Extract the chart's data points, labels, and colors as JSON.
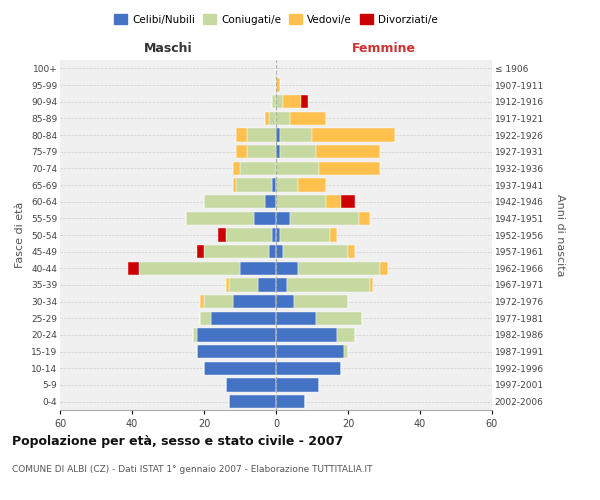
{
  "age_groups": [
    "0-4",
    "5-9",
    "10-14",
    "15-19",
    "20-24",
    "25-29",
    "30-34",
    "35-39",
    "40-44",
    "45-49",
    "50-54",
    "55-59",
    "60-64",
    "65-69",
    "70-74",
    "75-79",
    "80-84",
    "85-89",
    "90-94",
    "95-99",
    "100+"
  ],
  "birth_years": [
    "2002-2006",
    "1997-2001",
    "1992-1996",
    "1987-1991",
    "1982-1986",
    "1977-1981",
    "1972-1976",
    "1967-1971",
    "1962-1966",
    "1957-1961",
    "1952-1956",
    "1947-1951",
    "1942-1946",
    "1937-1941",
    "1932-1936",
    "1927-1931",
    "1922-1926",
    "1917-1921",
    "1912-1916",
    "1907-1911",
    "≤ 1906"
  ],
  "male": {
    "celibi": [
      13,
      14,
      20,
      22,
      22,
      18,
      12,
      5,
      10,
      2,
      1,
      6,
      3,
      1,
      0,
      0,
      0,
      0,
      0,
      0,
      0
    ],
    "coniugati": [
      0,
      0,
      0,
      0,
      1,
      3,
      8,
      8,
      28,
      18,
      13,
      19,
      17,
      10,
      10,
      8,
      8,
      2,
      1,
      0,
      0
    ],
    "vedovi": [
      0,
      0,
      0,
      0,
      0,
      0,
      1,
      1,
      0,
      0,
      0,
      0,
      0,
      1,
      2,
      3,
      3,
      1,
      0,
      0,
      0
    ],
    "divorziati": [
      0,
      0,
      0,
      0,
      0,
      0,
      0,
      0,
      3,
      2,
      2,
      0,
      0,
      0,
      0,
      0,
      0,
      0,
      0,
      0,
      0
    ]
  },
  "female": {
    "nubili": [
      8,
      12,
      18,
      19,
      17,
      11,
      5,
      3,
      6,
      2,
      1,
      4,
      0,
      0,
      0,
      1,
      1,
      0,
      0,
      0,
      0
    ],
    "coniugate": [
      0,
      0,
      0,
      1,
      5,
      13,
      15,
      23,
      23,
      18,
      14,
      19,
      14,
      6,
      12,
      10,
      9,
      4,
      2,
      0,
      0
    ],
    "vedove": [
      0,
      0,
      0,
      0,
      0,
      0,
      0,
      1,
      2,
      2,
      2,
      3,
      4,
      8,
      17,
      18,
      23,
      10,
      5,
      1,
      0
    ],
    "divorziate": [
      0,
      0,
      0,
      0,
      0,
      0,
      0,
      0,
      0,
      0,
      0,
      0,
      4,
      0,
      0,
      0,
      0,
      0,
      2,
      0,
      0
    ]
  },
  "colors": {
    "celibi": "#4472c4",
    "coniugati": "#c5d9a0",
    "vedovi": "#ffc04d",
    "divorziati": "#cc0000"
  },
  "xlim": 60,
  "title": "Popolazione per età, sesso e stato civile - 2007",
  "subtitle": "COMUNE DI ALBI (CZ) - Dati ISTAT 1° gennaio 2007 - Elaborazione TUTTITALIA.IT",
  "ylabel_left": "Fasce di età",
  "ylabel_right": "Anni di nascita",
  "xlabel_male": "Maschi",
  "xlabel_female": "Femmine",
  "legend_labels": [
    "Celibi/Nubili",
    "Coniugati/e",
    "Vedovi/e",
    "Divorziati/e"
  ],
  "background_color": "#ffffff",
  "grid_color": "#cccccc"
}
